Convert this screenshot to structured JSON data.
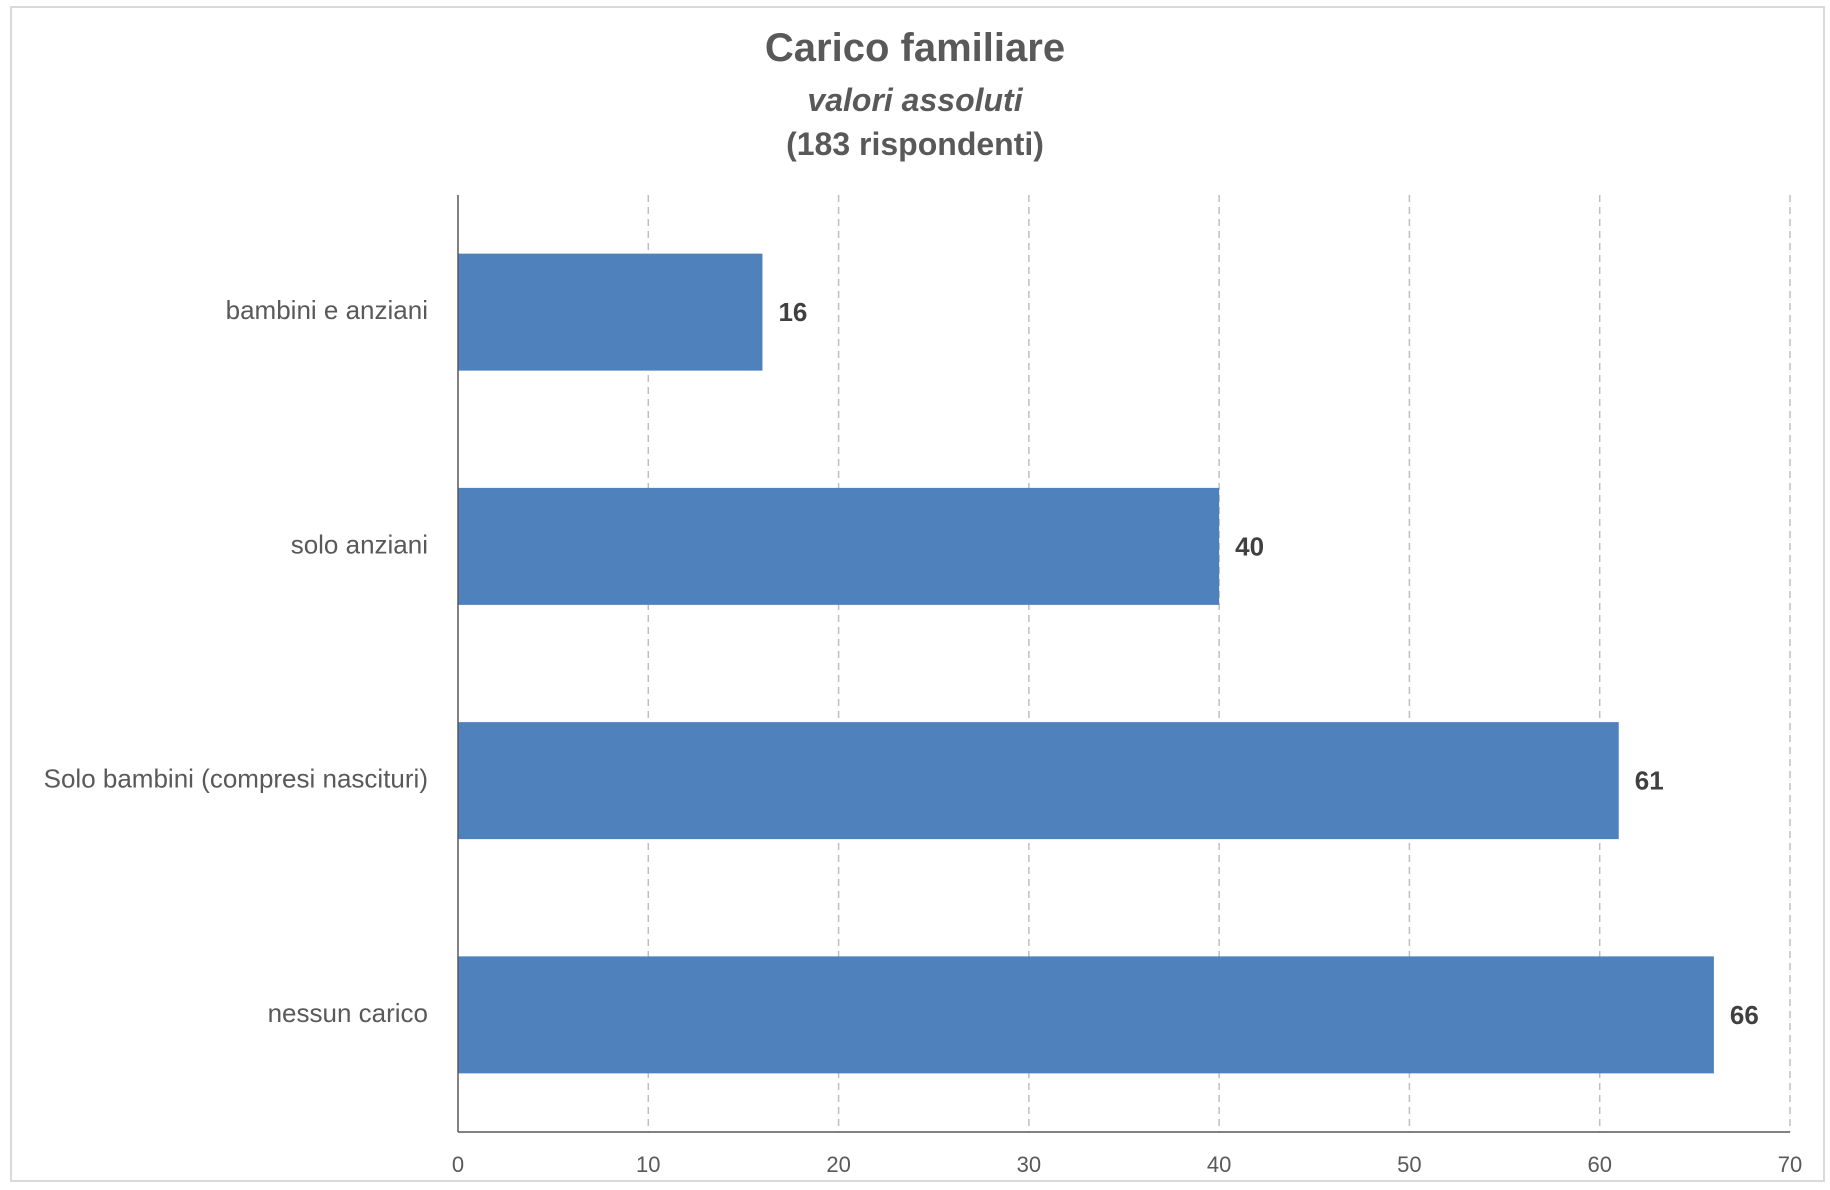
{
  "chart_data": {
    "type": "bar",
    "orientation": "horizontal",
    "title": "Carico familiare",
    "subtitle": "valori assoluti",
    "note": "(183 rispondenti)",
    "categories": [
      "bambini e anziani",
      "solo anziani",
      "Solo bambini (compresi nascituri)",
      "nessun carico"
    ],
    "values": [
      16,
      40,
      61,
      66
    ],
    "data_labels": [
      "16",
      "40",
      "61",
      "66"
    ],
    "xlim": [
      0,
      70
    ],
    "xticks": [
      0,
      10,
      20,
      30,
      40,
      50,
      60,
      70
    ],
    "tick_labels": [
      "0",
      "10",
      "20",
      "30",
      "40",
      "50",
      "60",
      "70"
    ],
    "grid": "vertical dashed",
    "legend": "none",
    "bar_color": "#4f81bd",
    "text_color": "#595959",
    "grid_color": "#bfbfbf"
  }
}
